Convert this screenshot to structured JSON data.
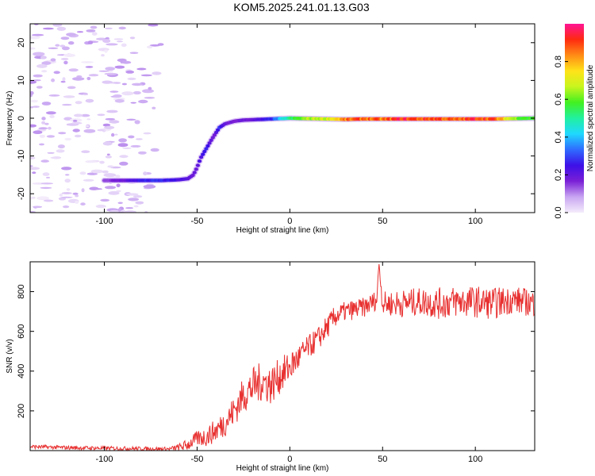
{
  "figure_title": "KOM5.2025.241.01.13.G03",
  "colors": {
    "snr_line": "#e83030",
    "colormap": [
      "#f4ecfb",
      "#c9a6f2",
      "#7a1fd6",
      "#3d10e8",
      "#2f6bff",
      "#1fd8ff",
      "#21f0a0",
      "#42f020",
      "#c8f51e",
      "#ffe319",
      "#ff8c16",
      "#ff2a10",
      "#ff1493"
    ]
  },
  "chart_data": [
    {
      "type": "heatmap",
      "title": "KOM5.2025.241.01.13.G03",
      "xlabel": "Height of straight line (km)",
      "ylabel": "Frequency (Hz)",
      "xlim": [
        -140,
        132
      ],
      "ylim": [
        -25,
        25
      ],
      "xticks": [
        -100,
        -50,
        0,
        50,
        100
      ],
      "xtick_labels": [
        "-100",
        "-50",
        "0",
        "50",
        "100"
      ],
      "yticks": [
        -20,
        -10,
        0,
        10,
        20
      ],
      "ytick_labels": [
        "-20",
        "-10",
        "0",
        "10",
        "20"
      ],
      "colorbar": {
        "label": "Normalized spectral amplitude",
        "range": [
          0,
          1
        ],
        "ticks": [
          0,
          0.2,
          0.4,
          0.6,
          0.8
        ],
        "tick_labels": [
          "0.0",
          "0.2",
          "0.4",
          "0.6",
          "0.8"
        ]
      },
      "ridge": {
        "description": "dominant frequency track",
        "x": [
          -100,
          -90,
          -80,
          -70,
          -60,
          -55,
          -52,
          -50,
          -48,
          -45,
          -42,
          -40,
          -38,
          -35,
          -30,
          -25,
          -20,
          -10,
          0,
          10,
          20,
          30,
          40,
          50,
          60,
          70,
          80,
          90,
          100,
          110,
          120,
          132
        ],
        "freq": [
          -16.5,
          -16.5,
          -16.5,
          -16.5,
          -16.3,
          -16.0,
          -15.0,
          -13.0,
          -10.5,
          -8.0,
          -5.5,
          -4.0,
          -2.5,
          -1.5,
          -0.8,
          -0.5,
          -0.4,
          -0.2,
          0,
          -0.1,
          -0.2,
          -0.3,
          -0.2,
          -0.2,
          -0.2,
          -0.2,
          -0.2,
          -0.2,
          -0.2,
          -0.2,
          -0.1,
          0
        ],
        "amplitude": [
          0.15,
          0.2,
          0.28,
          0.3,
          0.25,
          0.22,
          0.2,
          0.22,
          0.25,
          0.28,
          0.2,
          0.2,
          0.3,
          0.2,
          0.18,
          0.2,
          0.2,
          0.3,
          0.55,
          0.7,
          0.75,
          0.9,
          0.95,
          0.9,
          1.0,
          0.95,
          0.98,
          0.9,
          1.0,
          0.95,
          0.7,
          0.6
        ]
      },
      "noise_region": {
        "x_range": [
          -140,
          -60
        ],
        "freq_range": [
          -25,
          25
        ],
        "amplitude_max": 0.1
      }
    },
    {
      "type": "line",
      "xlabel": "Height of straight line (km)",
      "ylabel": "SNR (v/v)",
      "xlim": [
        -140,
        132
      ],
      "ylim": [
        0,
        950
      ],
      "xticks": [
        -100,
        -50,
        0,
        50,
        100
      ],
      "xtick_labels": [
        "-100",
        "-50",
        "0",
        "50",
        "100"
      ],
      "yticks": [
        200,
        400,
        600,
        800
      ],
      "ytick_labels": [
        "200",
        "400",
        "600",
        "800"
      ],
      "series": [
        {
          "name": "SNR",
          "trend_x": [
            -140,
            -120,
            -100,
            -80,
            -65,
            -60,
            -55,
            -50,
            -45,
            -40,
            -35,
            -30,
            -25,
            -20,
            -15,
            -10,
            -5,
            0,
            5,
            10,
            15,
            20,
            25,
            30,
            40,
            47,
            48,
            50,
            60,
            70,
            80,
            90,
            100,
            110,
            120,
            132
          ],
          "trend_y": [
            20,
            15,
            12,
            10,
            8,
            15,
            30,
            60,
            70,
            100,
            140,
            200,
            280,
            320,
            350,
            330,
            380,
            420,
            470,
            520,
            560,
            620,
            680,
            700,
            720,
            760,
            950,
            740,
            740,
            750,
            740,
            750,
            750,
            740,
            760,
            740
          ],
          "noise_amplitude": [
            10,
            10,
            10,
            10,
            10,
            20,
            30,
            40,
            50,
            60,
            70,
            80,
            90,
            100,
            100,
            100,
            90,
            80,
            70,
            60,
            60,
            60,
            55,
            50,
            50,
            50,
            0,
            60,
            70,
            70,
            80,
            80,
            80,
            80,
            70,
            70
          ]
        }
      ]
    }
  ]
}
